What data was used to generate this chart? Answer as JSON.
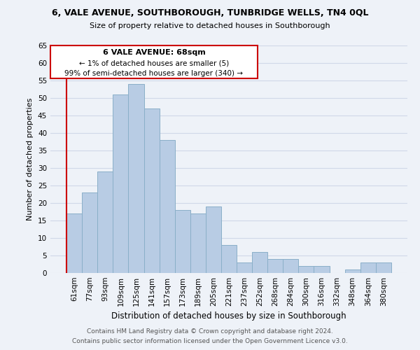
{
  "title": "6, VALE AVENUE, SOUTHBOROUGH, TUNBRIDGE WELLS, TN4 0QL",
  "subtitle": "Size of property relative to detached houses in Southborough",
  "xlabel": "Distribution of detached houses by size in Southborough",
  "ylabel": "Number of detached properties",
  "bar_labels": [
    "61sqm",
    "77sqm",
    "93sqm",
    "109sqm",
    "125sqm",
    "141sqm",
    "157sqm",
    "173sqm",
    "189sqm",
    "205sqm",
    "221sqm",
    "237sqm",
    "252sqm",
    "268sqm",
    "284sqm",
    "300sqm",
    "316sqm",
    "332sqm",
    "348sqm",
    "364sqm",
    "380sqm"
  ],
  "bar_values": [
    17,
    23,
    29,
    51,
    54,
    47,
    38,
    18,
    17,
    19,
    8,
    3,
    6,
    4,
    4,
    2,
    2,
    0,
    1,
    3,
    3
  ],
  "bar_color": "#b8cce4",
  "bar_edge_color": "#8aafc8",
  "highlight_color": "#cc0000",
  "ylim": [
    0,
    65
  ],
  "yticks": [
    0,
    5,
    10,
    15,
    20,
    25,
    30,
    35,
    40,
    45,
    50,
    55,
    60,
    65
  ],
  "annotation_title": "6 VALE AVENUE: 68sqm",
  "annotation_line1": "← 1% of detached houses are smaller (5)",
  "annotation_line2": "99% of semi-detached houses are larger (340) →",
  "annotation_box_color": "#ffffff",
  "annotation_box_edge": "#cc0000",
  "footer_line1": "Contains HM Land Registry data © Crown copyright and database right 2024.",
  "footer_line2": "Contains public sector information licensed under the Open Government Licence v3.0.",
  "grid_color": "#d0d8e8",
  "bg_color": "#eef2f8"
}
